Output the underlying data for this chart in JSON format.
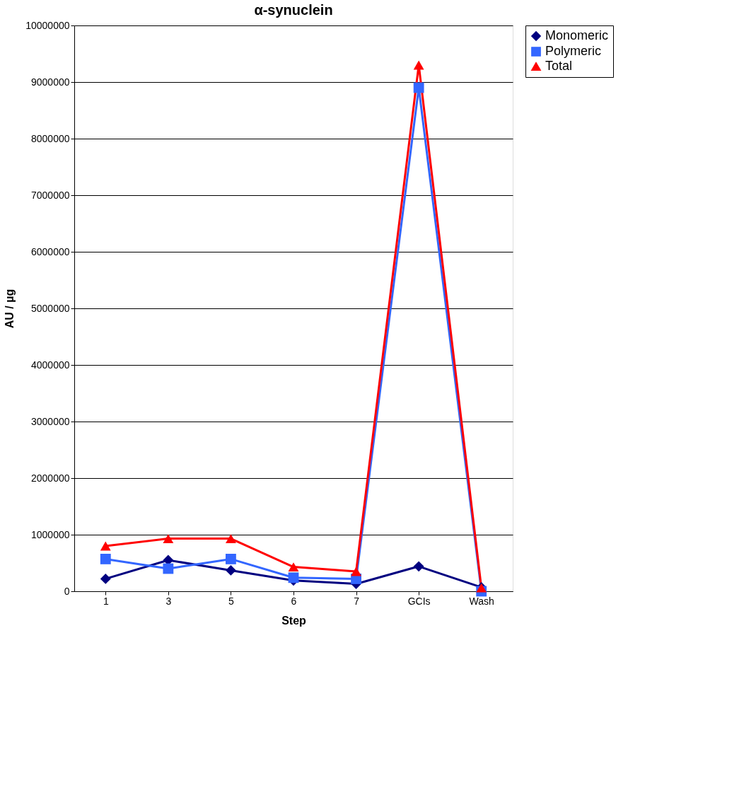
{
  "chart_data": {
    "type": "line",
    "title": "α-synuclein",
    "xlabel": "Step",
    "ylabel": "AU / µg",
    "categories": [
      "1",
      "3",
      "5",
      "6",
      "7",
      "GCIs",
      "Wash"
    ],
    "series": [
      {
        "name": "Monomeric",
        "color": "#000080",
        "marker": "diamond",
        "values": [
          220000,
          550000,
          370000,
          190000,
          130000,
          440000,
          70000
        ]
      },
      {
        "name": "Polymeric",
        "color": "#3366ff",
        "marker": "square",
        "values": [
          570000,
          400000,
          570000,
          240000,
          220000,
          8900000,
          0
        ]
      },
      {
        "name": "Total",
        "color": "#ff0000",
        "marker": "triangle",
        "values": [
          800000,
          930000,
          930000,
          430000,
          350000,
          9300000,
          60000
        ]
      }
    ],
    "ylim": [
      0,
      10000000
    ],
    "yticks": [
      0,
      1000000,
      2000000,
      3000000,
      4000000,
      5000000,
      6000000,
      7000000,
      8000000,
      9000000,
      10000000
    ],
    "grid": "y",
    "legend": "right"
  }
}
